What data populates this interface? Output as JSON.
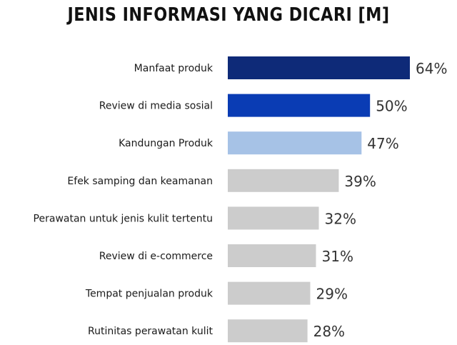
{
  "chart_data": {
    "type": "bar",
    "orientation": "horizontal",
    "title": "JENIS INFORMASI YANG DICARI [M]",
    "categories": [
      "Manfaat produk",
      "Review di media sosial",
      "Kandungan Produk",
      "Efek samping dan keamanan",
      "Perawatan untuk jenis kulit tertentu",
      "Review di e-commerce",
      "Tempat penjualan produk",
      "Rutinitas perawatan kulit"
    ],
    "values": [
      64,
      50,
      47,
      39,
      32,
      31,
      29,
      28
    ],
    "value_labels": [
      "64%",
      "50%",
      "47%",
      "39%",
      "32%",
      "31%",
      "29%",
      "28%"
    ],
    "colors": [
      "#0e2a78",
      "#0a3cb4",
      "#a6c2e6",
      "#cccccc",
      "#cccccc",
      "#cccccc",
      "#cccccc",
      "#cccccc"
    ],
    "xlim": [
      0,
      64
    ],
    "grid": false,
    "legend": "none"
  }
}
